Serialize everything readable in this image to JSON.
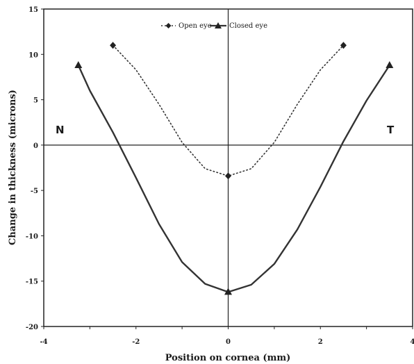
{
  "chart_data": {
    "type": "line",
    "title": "",
    "xlabel": "Position on cornea (mm)",
    "ylabel": "Change in thickness (microns)",
    "xlim": [
      -4,
      4
    ],
    "ylim": [
      -20,
      15
    ],
    "xticks": [
      -4,
      -3,
      -2,
      -1,
      0,
      1,
      2,
      3,
      4
    ],
    "yticks": [
      15,
      10,
      5,
      0,
      -5,
      -10,
      -15,
      -20
    ],
    "grid": false,
    "legend": "top-center",
    "annotations": {
      "left": "N",
      "right": "T"
    },
    "series": [
      {
        "name": "Open eye",
        "style": "dotted",
        "marker": "diamond",
        "color": "#333333",
        "markers": [
          {
            "x": -2.5,
            "y": 11
          },
          {
            "x": 0,
            "y": -3.4
          },
          {
            "x": 2.5,
            "y": 11
          }
        ],
        "curve": [
          {
            "x": -2.5,
            "y": 11
          },
          {
            "x": -2.0,
            "y": 8.3
          },
          {
            "x": -1.5,
            "y": 4.5
          },
          {
            "x": -1.0,
            "y": 0.3
          },
          {
            "x": -0.5,
            "y": -2.6
          },
          {
            "x": 0,
            "y": -3.4
          },
          {
            "x": 0.5,
            "y": -2.6
          },
          {
            "x": 1.0,
            "y": 0.3
          },
          {
            "x": 1.5,
            "y": 4.5
          },
          {
            "x": 2.0,
            "y": 8.3
          },
          {
            "x": 2.5,
            "y": 11
          }
        ]
      },
      {
        "name": "Closed eye",
        "style": "solid",
        "marker": "triangle",
        "color": "#333333",
        "markers": [
          {
            "x": -3.25,
            "y": 8.8
          },
          {
            "x": 0,
            "y": -16.2
          },
          {
            "x": 3.5,
            "y": 8.8
          }
        ],
        "curve": [
          {
            "x": -3.25,
            "y": 8.8
          },
          {
            "x": -3.0,
            "y": 6.0
          },
          {
            "x": -2.5,
            "y": 1.4
          },
          {
            "x": -2.0,
            "y": -3.6
          },
          {
            "x": -1.5,
            "y": -8.7
          },
          {
            "x": -1.0,
            "y": -12.9
          },
          {
            "x": -0.5,
            "y": -15.3
          },
          {
            "x": 0,
            "y": -16.2
          },
          {
            "x": 0.5,
            "y": -15.4
          },
          {
            "x": 1.0,
            "y": -13.1
          },
          {
            "x": 1.5,
            "y": -9.3
          },
          {
            "x": 2.0,
            "y": -4.6
          },
          {
            "x": 2.5,
            "y": 0.4
          },
          {
            "x": 3.0,
            "y": 4.9
          },
          {
            "x": 3.5,
            "y": 8.8
          }
        ]
      }
    ]
  }
}
